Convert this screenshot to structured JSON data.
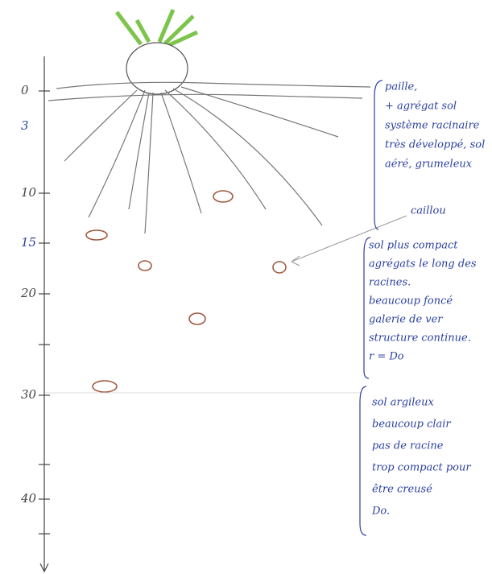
{
  "depth_axis": {
    "labels": [
      "0",
      "3",
      "10",
      "15",
      "20",
      "30",
      "40"
    ]
  },
  "annotations": {
    "surface": [
      "paille,",
      "+ agrégat sol",
      "système racinaire",
      "très développé, sol",
      "aéré, grumeleux"
    ],
    "stone": "caillou",
    "middle": [
      "sol plus compact",
      "agrégats le long des",
      "racines.",
      "beaucoup foncé",
      "galerie de ver",
      "structure continue.",
      "r = Do"
    ],
    "deep": [
      "sol argileux",
      "beaucoup clair",
      "pas de racine",
      "trop compact pour",
      "être creusé",
      "Do."
    ]
  }
}
